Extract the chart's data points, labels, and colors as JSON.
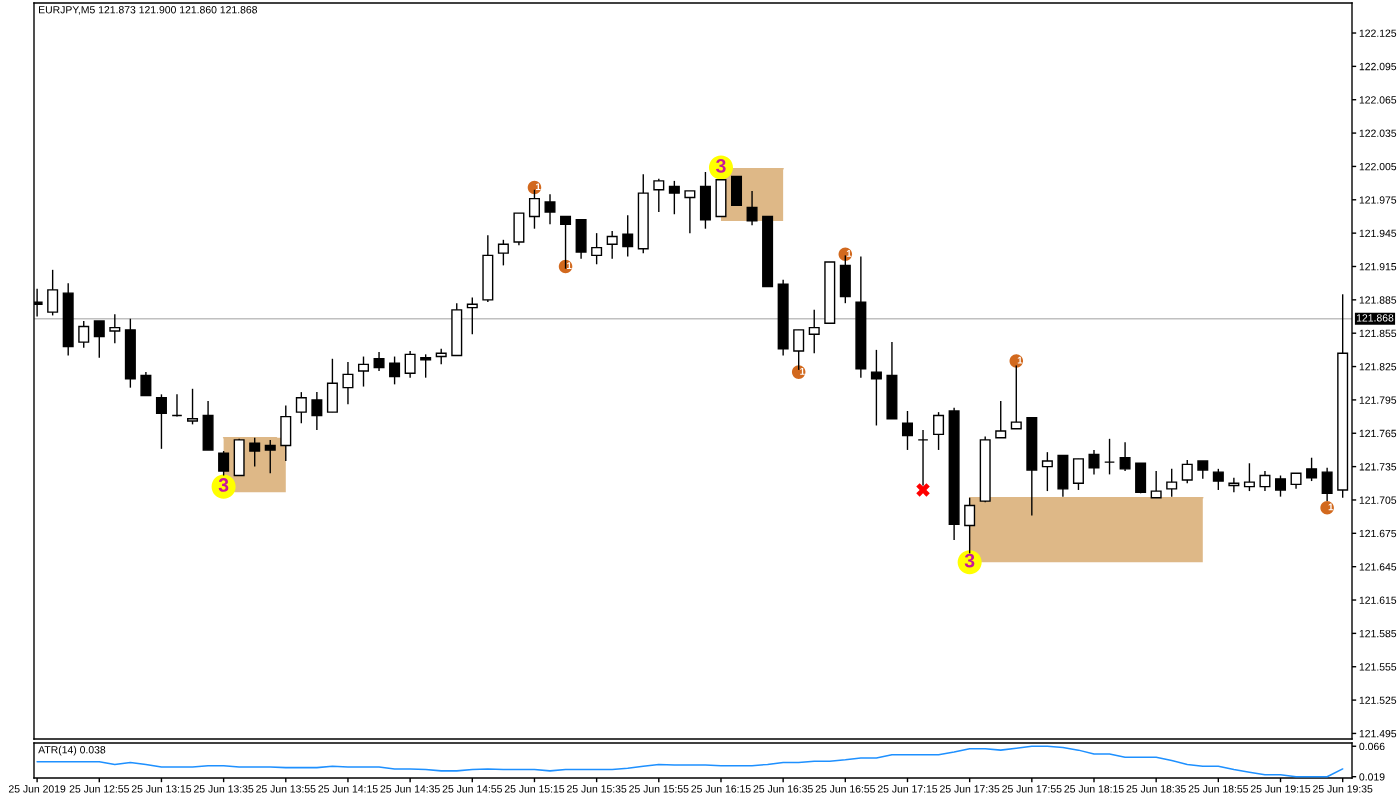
{
  "chart_data": [
    {
      "type": "candlestick",
      "title": "EURJPY,M5 121.873 121.900 121.860 121.868",
      "x": [
        "2019-06-25T12:35",
        "2019-06-25T12:40",
        "2019-06-25T12:45",
        "2019-06-25T12:50",
        "2019-06-25T12:55",
        "2019-06-25T13:00",
        "2019-06-25T13:05",
        "2019-06-25T13:10",
        "2019-06-25T13:15",
        "2019-06-25T13:20",
        "2019-06-25T13:25",
        "2019-06-25T13:30",
        "2019-06-25T13:35",
        "2019-06-25T13:40",
        "2019-06-25T13:45",
        "2019-06-25T13:50",
        "2019-06-25T13:55",
        "2019-06-25T14:00",
        "2019-06-25T14:05",
        "2019-06-25T14:10",
        "2019-06-25T14:15",
        "2019-06-25T14:20",
        "2019-06-25T14:25",
        "2019-06-25T14:30",
        "2019-06-25T14:35",
        "2019-06-25T14:40",
        "2019-06-25T14:45",
        "2019-06-25T14:50",
        "2019-06-25T14:55",
        "2019-06-25T15:00",
        "2019-06-25T15:05",
        "2019-06-25T15:10",
        "2019-06-25T15:15",
        "2019-06-25T15:20",
        "2019-06-25T15:25",
        "2019-06-25T15:30",
        "2019-06-25T15:35",
        "2019-06-25T15:40",
        "2019-06-25T15:45",
        "2019-06-25T15:50",
        "2019-06-25T15:55",
        "2019-06-25T16:00",
        "2019-06-25T16:05",
        "2019-06-25T16:10",
        "2019-06-25T16:15",
        "2019-06-25T16:20",
        "2019-06-25T16:25",
        "2019-06-25T16:30",
        "2019-06-25T16:35",
        "2019-06-25T16:40",
        "2019-06-25T16:45",
        "2019-06-25T16:50",
        "2019-06-25T16:55",
        "2019-06-25T17:00",
        "2019-06-25T17:05",
        "2019-06-25T17:10",
        "2019-06-25T17:15",
        "2019-06-25T17:20",
        "2019-06-25T17:25",
        "2019-06-25T17:30",
        "2019-06-25T17:35",
        "2019-06-25T17:40",
        "2019-06-25T17:45",
        "2019-06-25T17:50",
        "2019-06-25T17:55",
        "2019-06-25T18:00",
        "2019-06-25T18:05",
        "2019-06-25T18:10",
        "2019-06-25T18:15",
        "2019-06-25T18:20",
        "2019-06-25T18:25",
        "2019-06-25T18:30",
        "2019-06-25T18:35",
        "2019-06-25T18:40",
        "2019-06-25T18:45",
        "2019-06-25T18:50",
        "2019-06-25T18:55",
        "2019-06-25T19:00",
        "2019-06-25T19:05",
        "2019-06-25T19:10",
        "2019-06-25T19:15",
        "2019-06-25T19:20",
        "2019-06-25T19:25",
        "2019-06-25T19:30",
        "2019-06-25T19:35"
      ],
      "ohlc": [
        [
          121.883,
          121.895,
          121.87,
          121.881
        ],
        [
          121.874,
          121.912,
          121.871,
          121.894
        ],
        [
          121.891,
          121.9,
          121.835,
          121.843
        ],
        [
          121.847,
          121.866,
          121.842,
          121.861
        ],
        [
          121.866,
          121.866,
          121.833,
          121.852
        ],
        [
          121.857,
          121.872,
          121.846,
          121.86
        ],
        [
          121.858,
          121.868,
          121.806,
          121.814
        ],
        [
          121.817,
          121.82,
          121.799,
          121.799
        ],
        [
          121.797,
          121.8,
          121.751,
          121.783
        ],
        [
          121.781,
          121.8,
          121.78,
          121.781
        ],
        [
          121.776,
          121.805,
          121.773,
          121.778
        ],
        [
          121.781,
          121.794,
          121.75,
          121.75
        ],
        [
          121.747,
          121.749,
          121.727,
          121.731
        ],
        [
          121.727,
          121.76,
          121.727,
          121.759
        ],
        [
          121.756,
          121.761,
          121.735,
          121.749
        ],
        [
          121.754,
          121.759,
          121.729,
          121.75
        ],
        [
          121.754,
          121.79,
          121.74,
          121.78
        ],
        [
          121.784,
          121.802,
          121.774,
          121.797
        ],
        [
          121.795,
          121.802,
          121.768,
          121.781
        ],
        [
          121.784,
          121.832,
          121.784,
          121.81
        ],
        [
          121.806,
          121.829,
          121.791,
          121.818
        ],
        [
          121.821,
          121.834,
          121.807,
          121.827
        ],
        [
          121.832,
          121.838,
          121.821,
          121.824
        ],
        [
          121.828,
          121.834,
          121.809,
          121.816
        ],
        [
          121.819,
          121.839,
          121.815,
          121.836
        ],
        [
          121.833,
          121.836,
          121.815,
          121.831
        ],
        [
          121.834,
          121.841,
          121.827,
          121.837
        ],
        [
          121.835,
          121.882,
          121.835,
          121.876
        ],
        [
          121.878,
          121.887,
          121.854,
          121.881
        ],
        [
          121.885,
          121.943,
          121.883,
          121.925
        ],
        [
          121.927,
          121.939,
          121.916,
          121.935
        ],
        [
          121.937,
          121.963,
          121.934,
          121.963
        ],
        [
          121.96,
          121.984,
          121.949,
          121.976
        ],
        [
          121.973,
          121.98,
          121.953,
          121.964
        ],
        [
          121.96,
          121.96,
          121.913,
          121.953
        ],
        [
          121.957,
          121.957,
          121.922,
          121.928
        ],
        [
          121.925,
          121.945,
          121.917,
          121.932
        ],
        [
          121.935,
          121.947,
          121.922,
          121.942
        ],
        [
          121.944,
          121.961,
          121.924,
          121.933
        ],
        [
          121.931,
          121.998,
          121.927,
          121.981
        ],
        [
          121.984,
          121.994,
          121.964,
          121.992
        ],
        [
          121.987,
          121.992,
          121.962,
          121.981
        ],
        [
          121.977,
          121.983,
          121.945,
          121.983
        ],
        [
          121.987,
          122.0,
          121.949,
          121.957
        ],
        [
          121.96,
          121.993,
          121.96,
          121.993
        ],
        [
          121.996,
          121.996,
          121.97,
          121.97
        ],
        [
          121.968,
          121.983,
          121.952,
          121.956
        ],
        [
          121.96,
          121.96,
          121.897,
          121.897
        ],
        [
          121.899,
          121.903,
          121.835,
          121.841
        ],
        [
          121.839,
          121.858,
          121.822,
          121.858
        ],
        [
          121.854,
          121.876,
          121.837,
          121.86
        ],
        [
          121.864,
          121.919,
          121.864,
          121.919
        ],
        [
          121.916,
          121.925,
          121.882,
          121.888
        ],
        [
          121.883,
          121.924,
          121.815,
          121.823
        ],
        [
          121.82,
          121.84,
          121.772,
          121.814
        ],
        [
          121.817,
          121.847,
          121.778,
          121.778
        ],
        [
          121.774,
          121.785,
          121.75,
          121.763
        ],
        [
          121.759,
          121.768,
          121.718,
          121.759
        ],
        [
          121.764,
          121.784,
          121.75,
          121.781
        ],
        [
          121.785,
          121.788,
          121.669,
          121.683
        ],
        [
          121.682,
          121.707,
          121.657,
          121.7
        ],
        [
          121.704,
          121.762,
          121.703,
          121.759
        ],
        [
          121.761,
          121.794,
          121.761,
          121.767
        ],
        [
          121.769,
          121.826,
          121.769,
          121.775
        ],
        [
          121.779,
          121.779,
          121.691,
          121.732
        ],
        [
          121.735,
          121.748,
          121.713,
          121.74
        ],
        [
          121.745,
          121.745,
          121.708,
          121.715
        ],
        [
          121.72,
          121.742,
          121.714,
          121.742
        ],
        [
          121.746,
          121.75,
          121.728,
          121.734
        ],
        [
          121.739,
          121.76,
          121.728,
          121.739
        ],
        [
          121.743,
          121.757,
          121.731,
          121.733
        ],
        [
          121.738,
          121.738,
          121.711,
          121.712
        ],
        [
          121.707,
          121.731,
          121.707,
          121.713
        ],
        [
          121.715,
          121.733,
          121.708,
          121.721
        ],
        [
          121.723,
          121.741,
          121.72,
          121.737
        ],
        [
          121.74,
          121.74,
          121.724,
          121.732
        ],
        [
          121.73,
          121.733,
          121.714,
          121.722
        ],
        [
          121.718,
          121.725,
          121.712,
          121.72
        ],
        [
          121.717,
          121.738,
          121.713,
          121.721
        ],
        [
          121.717,
          121.731,
          121.713,
          121.727
        ],
        [
          121.724,
          121.727,
          121.708,
          121.714
        ],
        [
          121.719,
          121.729,
          121.715,
          121.729
        ],
        [
          121.733,
          121.743,
          121.722,
          121.725
        ],
        [
          121.73,
          121.734,
          121.704,
          121.711
        ],
        [
          121.714,
          121.89,
          121.707,
          121.837
        ]
      ],
      "colors": [
        "#000000",
        "#ffffff",
        "#000000",
        "#ffffff",
        "#000000",
        "#ffffff",
        "#000000",
        "#000000",
        "#000000",
        "#000000",
        "#ffffff",
        "#000000",
        "#000000",
        "#ffffff",
        "#000000",
        "#000000",
        "#ffffff",
        "#ffffff",
        "#000000",
        "#ffffff",
        "#ffffff",
        "#ffffff",
        "#000000",
        "#000000",
        "#ffffff",
        "#000000",
        "#ffffff",
        "#ffffff",
        "#ffffff",
        "#ffffff",
        "#ffffff",
        "#ffffff",
        "#ffffff",
        "#000000",
        "#000000",
        "#000000",
        "#ffffff",
        "#ffffff",
        "#000000",
        "#ffffff",
        "#ffffff",
        "#000000",
        "#ffffff",
        "#000000",
        "#ffffff",
        "#000000",
        "#000000",
        "#000000",
        "#000000",
        "#ffffff",
        "#ffffff",
        "#ffffff",
        "#000000",
        "#000000",
        "#000000",
        "#000000",
        "#000000",
        "#000000",
        "#ffffff",
        "#000000",
        "#ffffff",
        "#ffffff",
        "#ffffff",
        "#ffffff",
        "#000000",
        "#ffffff",
        "#000000",
        "#ffffff",
        "#000000",
        "#000000",
        "#000000",
        "#000000",
        "#ffffff",
        "#ffffff",
        "#ffffff",
        "#000000",
        "#000000",
        "#ffffff",
        "#ffffff",
        "#ffffff",
        "#000000",
        "#ffffff",
        "#000000",
        "#000000",
        "#ffffff"
      ],
      "series": [
        {
          "type": "line",
          "color": "#deb887",
          "x": [
            "2019-06-25T13:35",
            "2019-06-25T13:52",
            "2019-06-25T13:55"
          ],
          "values": [
            121.761,
            121.761,
            null
          ],
          "lower": [
            121.712,
            121.712,
            121.712
          ],
          "upper": [
            121.761,
            121.761,
            121.761
          ]
        },
        {
          "type": "line",
          "color": "#deb887",
          "x": [
            "2019-06-25T16:15",
            "2019-06-25T16:35"
          ],
          "values": [
            122.003,
            122.003
          ],
          "lower": [
            121.956,
            121.956
          ],
          "upper": [
            122.003,
            122.003
          ]
        },
        {
          "type": "line",
          "color": "#deb887",
          "x": [
            "2019-06-25T17:35",
            "2019-06-25T18:50"
          ],
          "values": [
            121.707,
            121.707
          ],
          "lower": [
            121.649,
            121.649
          ],
          "upper": [
            121.707,
            121.707
          ]
        },
        {
          "type": "scatter",
          "color": "#d2691e",
          "marker": "circle",
          "x": [
            "2019-06-25T15:15",
            "2019-06-25T15:25",
            "2019-06-25T16:40",
            "2019-06-25T16:55",
            "2019-06-25T17:50",
            "2019-06-25T19:30"
          ],
          "values": [
            121.986,
            121.915,
            121.82,
            121.926,
            121.83,
            121.698
          ]
        },
        {
          "type": "scatter",
          "color": "#ffff00",
          "marker": "circle",
          "x": [
            "2019-06-25T13:35",
            "2019-06-25T16:15",
            "2019-06-25T17:35"
          ],
          "values": [
            121.717,
            122.004,
            121.649
          ]
        },
        {
          "type": "scatter",
          "color": "#ff0000",
          "marker": "cross",
          "x": [
            "2019-06-25T17:20"
          ],
          "values": [
            121.714
          ]
        }
      ],
      "annotations": [
        {
          "text": "1",
          "x": "2019-06-25T15:15",
          "y": 121.986
        },
        {
          "text": "1",
          "x": "2019-06-25T15:25",
          "y": 121.915
        },
        {
          "text": "1",
          "x": "2019-06-25T16:40",
          "y": 121.82
        },
        {
          "text": "1",
          "x": "2019-06-25T16:55",
          "y": 121.926
        },
        {
          "text": "1",
          "x": "2019-06-25T17:50",
          "y": 121.83
        },
        {
          "text": "1",
          "x": "2019-06-25T19:30",
          "y": 121.698
        },
        {
          "text": "3",
          "x": "2019-06-25T13:35",
          "y": 121.717
        },
        {
          "text": "3",
          "x": "2019-06-25T16:15",
          "y": 122.004
        },
        {
          "text": "3",
          "x": "2019-06-25T17:35",
          "y": 121.649
        }
      ],
      "ref_lines": [
        {
          "axis": "y",
          "value": 121.868,
          "label": "121.868",
          "color": "#c0c0c0"
        }
      ],
      "xlim": [
        "2019-06-25T12:34",
        "2019-06-25T19:38"
      ],
      "ylim": [
        121.49,
        122.152
      ],
      "yticks": [
        121.495,
        121.525,
        121.555,
        121.585,
        121.615,
        121.645,
        121.675,
        121.705,
        121.735,
        121.765,
        121.795,
        121.825,
        121.855,
        121.885,
        121.915,
        121.945,
        121.975,
        122.005,
        122.035,
        122.065,
        122.095,
        122.125
      ],
      "tick_labels": "y"
    },
    {
      "type": "line",
      "title": "ATR(14) 0.038",
      "x": [
        "2019-06-25T12:35",
        "2019-06-25T12:40",
        "2019-06-25T12:45",
        "2019-06-25T12:50",
        "2019-06-25T12:55",
        "2019-06-25T13:00",
        "2019-06-25T13:05",
        "2019-06-25T13:10",
        "2019-06-25T13:15",
        "2019-06-25T13:20",
        "2019-06-25T13:25",
        "2019-06-25T13:30",
        "2019-06-25T13:35",
        "2019-06-25T13:40",
        "2019-06-25T13:45",
        "2019-06-25T13:50",
        "2019-06-25T13:55",
        "2019-06-25T14:00",
        "2019-06-25T14:05",
        "2019-06-25T14:10",
        "2019-06-25T14:15",
        "2019-06-25T14:20",
        "2019-06-25T14:25",
        "2019-06-25T14:30",
        "2019-06-25T14:35",
        "2019-06-25T14:40",
        "2019-06-25T14:45",
        "2019-06-25T14:50",
        "2019-06-25T14:55",
        "2019-06-25T15:00",
        "2019-06-25T15:05",
        "2019-06-25T15:10",
        "2019-06-25T15:15",
        "2019-06-25T15:20",
        "2019-06-25T15:25",
        "2019-06-25T15:30",
        "2019-06-25T15:35",
        "2019-06-25T15:40",
        "2019-06-25T15:45",
        "2019-06-25T15:50",
        "2019-06-25T15:55",
        "2019-06-25T16:00",
        "2019-06-25T16:05",
        "2019-06-25T16:10",
        "2019-06-25T16:15",
        "2019-06-25T16:20",
        "2019-06-25T16:25",
        "2019-06-25T16:30",
        "2019-06-25T16:35",
        "2019-06-25T16:40",
        "2019-06-25T16:45",
        "2019-06-25T16:50",
        "2019-06-25T16:55",
        "2019-06-25T17:00",
        "2019-06-25T17:05",
        "2019-06-25T17:10",
        "2019-06-25T17:15",
        "2019-06-25T17:20",
        "2019-06-25T17:25",
        "2019-06-25T17:30",
        "2019-06-25T17:35",
        "2019-06-25T17:40",
        "2019-06-25T17:45",
        "2019-06-25T17:50",
        "2019-06-25T17:55",
        "2019-06-25T18:00",
        "2019-06-25T18:05",
        "2019-06-25T18:10",
        "2019-06-25T18:15",
        "2019-06-25T18:20",
        "2019-06-25T18:25",
        "2019-06-25T18:30",
        "2019-06-25T18:35",
        "2019-06-25T18:40",
        "2019-06-25T18:45",
        "2019-06-25T18:50",
        "2019-06-25T18:55",
        "2019-06-25T19:00",
        "2019-06-25T19:05",
        "2019-06-25T19:10",
        "2019-06-25T19:15",
        "2019-06-25T19:20",
        "2019-06-25T19:25",
        "2019-06-25T19:30",
        "2019-06-25T19:35"
      ],
      "series": [
        {
          "color": "#1e90ff",
          "values": [
            0.042,
            0.042,
            0.042,
            0.042,
            0.042,
            0.038,
            0.041,
            0.038,
            0.034,
            0.034,
            0.034,
            0.036,
            0.036,
            0.034,
            0.034,
            0.034,
            0.033,
            0.033,
            0.033,
            0.035,
            0.034,
            0.034,
            0.034,
            0.031,
            0.031,
            0.03,
            0.028,
            0.028,
            0.03,
            0.031,
            0.03,
            0.03,
            0.03,
            0.028,
            0.03,
            0.03,
            0.03,
            0.03,
            0.032,
            0.035,
            0.038,
            0.037,
            0.037,
            0.037,
            0.036,
            0.036,
            0.036,
            0.038,
            0.041,
            0.041,
            0.043,
            0.043,
            0.045,
            0.048,
            0.048,
            0.053,
            0.053,
            0.053,
            0.053,
            0.057,
            0.062,
            0.062,
            0.06,
            0.063,
            0.066,
            0.066,
            0.064,
            0.06,
            0.054,
            0.054,
            0.049,
            0.049,
            0.049,
            0.044,
            0.038,
            0.035,
            0.035,
            0.03,
            0.026,
            0.022,
            0.022,
            0.019,
            0.019,
            0.019,
            0.031
          ]
        }
      ],
      "xlim": [
        "2019-06-25T12:34",
        "2019-06-25T19:38"
      ],
      "xticks": [
        {
          "value": "2019-06-25T12:35",
          "label": "25 Jun 2019"
        },
        {
          "value": "2019-06-25T12:55",
          "label": "25 Jun 12:55"
        },
        {
          "value": "2019-06-25T13:15",
          "label": "25 Jun 13:15"
        },
        {
          "value": "2019-06-25T13:35",
          "label": "25 Jun 13:35"
        },
        {
          "value": "2019-06-25T13:55",
          "label": "25 Jun 13:55"
        },
        {
          "value": "2019-06-25T14:15",
          "label": "25 Jun 14:15"
        },
        {
          "value": "2019-06-25T14:35",
          "label": "25 Jun 14:35"
        },
        {
          "value": "2019-06-25T14:55",
          "label": "25 Jun 14:55"
        },
        {
          "value": "2019-06-25T15:15",
          "label": "25 Jun 15:15"
        },
        {
          "value": "2019-06-25T15:35",
          "label": "25 Jun 15:35"
        },
        {
          "value": "2019-06-25T15:55",
          "label": "25 Jun 15:55"
        },
        {
          "value": "2019-06-25T16:15",
          "label": "25 Jun 16:15"
        },
        {
          "value": "2019-06-25T16:35",
          "label": "25 Jun 16:35"
        },
        {
          "value": "2019-06-25T16:55",
          "label": "25 Jun 16:55"
        },
        {
          "value": "2019-06-25T17:15",
          "label": "25 Jun 17:15"
        },
        {
          "value": "2019-06-25T17:35",
          "label": "25 Jun 17:35"
        },
        {
          "value": "2019-06-25T17:55",
          "label": "25 Jun 17:55"
        },
        {
          "value": "2019-06-25T18:15",
          "label": "25 Jun 18:15"
        },
        {
          "value": "2019-06-25T18:35",
          "label": "25 Jun 18:35"
        },
        {
          "value": "2019-06-25T18:55",
          "label": "25 Jun 18:55"
        },
        {
          "value": "2019-06-25T19:15",
          "label": "25 Jun 19:15"
        },
        {
          "value": "2019-06-25T19:35",
          "label": "25 Jun 19:35"
        }
      ],
      "ylim": [
        0.017,
        0.071
      ],
      "yticks": [
        0.019,
        0.066
      ]
    }
  ]
}
